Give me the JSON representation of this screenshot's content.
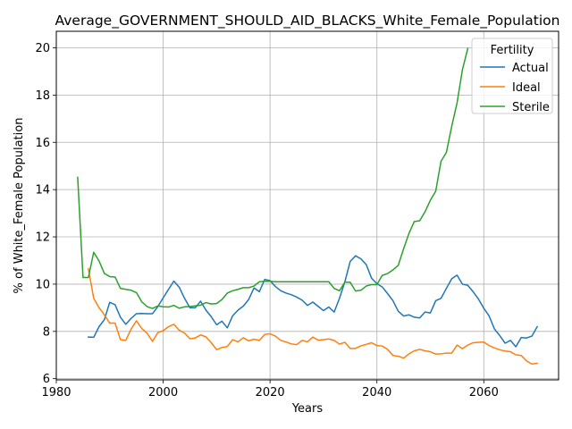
{
  "chart_data": {
    "type": "line",
    "title": "Average_GOVERNMENT_SHOULD_AID_BLACKS_White_Female_Population",
    "xlabel": "Years",
    "ylabel": "% of White_Female Population",
    "xlim": [
      1980,
      2074
    ],
    "ylim": [
      5.95,
      20.7
    ],
    "xticks": [
      1980,
      2000,
      2020,
      2040,
      2060
    ],
    "yticks": [
      6,
      8,
      10,
      12,
      14,
      16,
      18,
      20
    ],
    "grid": true,
    "legend": {
      "title": "Fertility",
      "placement": "top-right"
    },
    "series": [
      {
        "name": "Actual",
        "color": "#1f77b4",
        "x": [
          1986,
          1987,
          1988,
          1989,
          1990,
          1991,
          1992,
          1993,
          1994,
          1995,
          1996,
          1997,
          1998,
          1999,
          2000,
          2001,
          2002,
          2003,
          2004,
          2005,
          2006,
          2007,
          2008,
          2009,
          2010,
          2011,
          2012,
          2013,
          2014,
          2015,
          2016,
          2017,
          2018,
          2019,
          2020,
          2021,
          2022,
          2023,
          2024,
          2025,
          2026,
          2027,
          2028,
          2029,
          2030,
          2031,
          2032,
          2033,
          2034,
          2035,
          2036,
          2037,
          2038,
          2039,
          2040,
          2041,
          2042,
          2043,
          2044,
          2045,
          2046,
          2047,
          2048,
          2049,
          2050,
          2051,
          2052,
          2053,
          2054,
          2055,
          2056,
          2057,
          2058,
          2059,
          2060,
          2061,
          2062,
          2063,
          2064,
          2065,
          2066,
          2067,
          2068,
          2069,
          2070
        ],
        "values": [
          7.76,
          7.75,
          8.2,
          8.5,
          9.23,
          9.13,
          8.6,
          8.3,
          8.55,
          8.75,
          8.76,
          8.75,
          8.75,
          9.05,
          9.42,
          9.78,
          10.13,
          9.87,
          9.4,
          9.0,
          9.0,
          9.28,
          8.9,
          8.62,
          8.28,
          8.43,
          8.15,
          8.66,
          8.9,
          9.07,
          9.35,
          9.84,
          9.68,
          10.2,
          10.15,
          9.9,
          9.72,
          9.62,
          9.55,
          9.45,
          9.32,
          9.1,
          9.24,
          9.06,
          8.88,
          9.03,
          8.82,
          9.4,
          10.1,
          10.96,
          11.2,
          11.07,
          10.83,
          10.25,
          10.02,
          9.88,
          9.6,
          9.3,
          8.85,
          8.65,
          8.7,
          8.6,
          8.57,
          8.82,
          8.78,
          9.3,
          9.4,
          9.82,
          10.23,
          10.38,
          10.0,
          9.95,
          9.68,
          9.37,
          8.98,
          8.65,
          8.1,
          7.82,
          7.5,
          7.62,
          7.35,
          7.74,
          7.72,
          7.8,
          8.2
        ]
      },
      {
        "name": "Ideal",
        "color": "#ff7f0e",
        "x": [
          1986,
          1987,
          1988,
          1989,
          1990,
          1991,
          1992,
          1993,
          1994,
          1995,
          1996,
          1997,
          1998,
          1999,
          2000,
          2001,
          2002,
          2003,
          2004,
          2005,
          2006,
          2007,
          2008,
          2009,
          2010,
          2011,
          2012,
          2013,
          2014,
          2015,
          2016,
          2017,
          2018,
          2019,
          2020,
          2021,
          2022,
          2023,
          2024,
          2025,
          2026,
          2027,
          2028,
          2029,
          2030,
          2031,
          2032,
          2033,
          2034,
          2035,
          2036,
          2037,
          2038,
          2039,
          2040,
          2041,
          2042,
          2043,
          2044,
          2045,
          2046,
          2047,
          2048,
          2049,
          2050,
          2051,
          2052,
          2053,
          2054,
          2055,
          2056,
          2057,
          2058,
          2059,
          2060,
          2061,
          2062,
          2063,
          2064,
          2065,
          2066,
          2067,
          2068,
          2069,
          2070
        ],
        "values": [
          10.65,
          9.4,
          9.0,
          8.7,
          8.35,
          8.35,
          7.65,
          7.62,
          8.1,
          8.45,
          8.12,
          7.92,
          7.58,
          7.95,
          8.03,
          8.2,
          8.3,
          8.05,
          7.93,
          7.69,
          7.72,
          7.85,
          7.77,
          7.52,
          7.23,
          7.32,
          7.36,
          7.65,
          7.56,
          7.73,
          7.6,
          7.67,
          7.62,
          7.87,
          7.9,
          7.8,
          7.62,
          7.55,
          7.47,
          7.44,
          7.62,
          7.56,
          7.76,
          7.63,
          7.65,
          7.68,
          7.62,
          7.46,
          7.54,
          7.28,
          7.28,
          7.39,
          7.45,
          7.52,
          7.4,
          7.38,
          7.24,
          6.98,
          6.95,
          6.87,
          7.05,
          7.18,
          7.24,
          7.18,
          7.14,
          7.04,
          7.05,
          7.08,
          7.08,
          7.42,
          7.27,
          7.42,
          7.52,
          7.54,
          7.55,
          7.4,
          7.3,
          7.22,
          7.17,
          7.14,
          7.01,
          6.98,
          6.75,
          6.62,
          6.65
        ]
      },
      {
        "name": "Sterile",
        "color": "#2ca02c",
        "x": [
          1984,
          1985,
          1986,
          1987,
          1988,
          1989,
          1990,
          1991,
          1992,
          1993,
          1994,
          1995,
          1996,
          1997,
          1998,
          1999,
          2000,
          2001,
          2002,
          2003,
          2004,
          2005,
          2006,
          2007,
          2008,
          2009,
          2010,
          2011,
          2012,
          2013,
          2014,
          2015,
          2016,
          2017,
          2018,
          2019,
          2020,
          2021,
          2022,
          2023,
          2024,
          2025,
          2026,
          2027,
          2028,
          2029,
          2030,
          2031,
          2032,
          2033,
          2034,
          2035,
          2036,
          2037,
          2038,
          2039,
          2040,
          2041,
          2042,
          2043,
          2044,
          2045,
          2046,
          2047,
          2048,
          2049,
          2050,
          2051,
          2052,
          2053,
          2054,
          2055,
          2056,
          2057
        ],
        "values": [
          14.52,
          10.28,
          10.28,
          11.35,
          10.98,
          10.45,
          10.32,
          10.3,
          9.82,
          9.78,
          9.74,
          9.64,
          9.25,
          9.05,
          8.97,
          9.08,
          9.04,
          9.03,
          9.1,
          8.98,
          9.04,
          9.05,
          9.08,
          9.11,
          9.22,
          9.16,
          9.18,
          9.35,
          9.62,
          9.72,
          9.78,
          9.85,
          9.85,
          9.92,
          10.1,
          10.12,
          10.12,
          10.1,
          10.1,
          10.1,
          10.1,
          10.1,
          10.1,
          10.1,
          10.1,
          10.1,
          10.1,
          10.1,
          9.82,
          9.72,
          10.08,
          10.08,
          9.71,
          9.74,
          9.92,
          9.98,
          9.98,
          10.37,
          10.45,
          10.6,
          10.8,
          11.5,
          12.15,
          12.65,
          12.68,
          13.06,
          13.55,
          13.93,
          15.2,
          15.57,
          16.68,
          17.67,
          19.07,
          19.97
        ]
      }
    ]
  }
}
